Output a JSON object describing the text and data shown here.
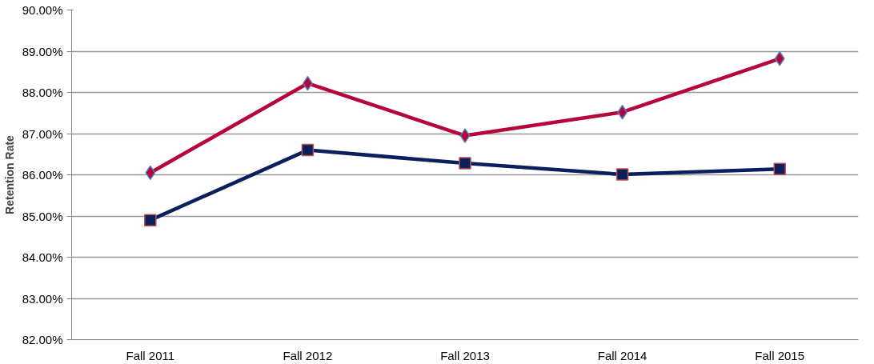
{
  "chart_data": {
    "type": "line",
    "ylabel": "Retention Rate",
    "categories": [
      "Fall 2011",
      "Fall 2012",
      "Fall 2013",
      "Fall 2014",
      "Fall 2015"
    ],
    "series": [
      {
        "color": "#b5053a",
        "marker": "diamond",
        "values": [
          86.05,
          88.22,
          86.95,
          87.52,
          88.82
        ]
      },
      {
        "color": "#0a1f5c",
        "marker": "square",
        "values": [
          84.9,
          86.6,
          86.28,
          86.01,
          86.14
        ]
      }
    ],
    "ylim": [
      82,
      90
    ],
    "yticks": [
      {
        "value": 82,
        "label": "82.00%"
      },
      {
        "value": 83,
        "label": "83.00%"
      },
      {
        "value": 84,
        "label": "84.00%"
      },
      {
        "value": 85,
        "label": "85.00%"
      },
      {
        "value": 86,
        "label": "86.00%"
      },
      {
        "value": 87,
        "label": "87.00%"
      },
      {
        "value": 88,
        "label": "88.00%"
      },
      {
        "value": 89,
        "label": "89.00%"
      },
      {
        "value": 90,
        "label": "90.00%"
      }
    ],
    "grid": "y",
    "line_style": "solid"
  }
}
